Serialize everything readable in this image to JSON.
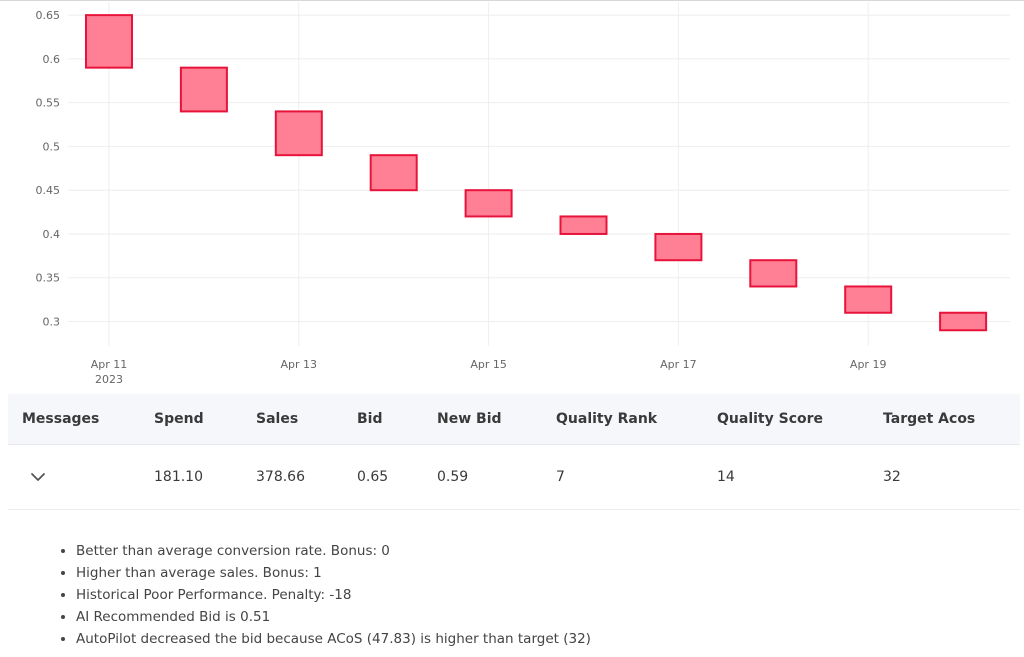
{
  "chart_data": {
    "type": "candlestick",
    "x": [
      "Apr 11 2023",
      "Apr 12 2023",
      "Apr 13 2023",
      "Apr 14 2023",
      "Apr 15 2023",
      "Apr 16 2023",
      "Apr 17 2023",
      "Apr 18 2023",
      "Apr 19 2023",
      "Apr 20 2023"
    ],
    "open": [
      0.65,
      0.59,
      0.54,
      0.49,
      0.45,
      0.42,
      0.4,
      0.37,
      0.34,
      0.31
    ],
    "close": [
      0.59,
      0.54,
      0.49,
      0.45,
      0.42,
      0.4,
      0.37,
      0.34,
      0.31,
      0.29
    ],
    "ylim": [
      0.272,
      0.665
    ],
    "y_ticks": [
      "0.3",
      "0.35",
      "0.4",
      "0.45",
      "0.5",
      "0.55",
      "0.6",
      "0.65"
    ],
    "x_ticks": [
      {
        "label": "Apr 11",
        "sub": "2023"
      },
      {
        "label": "Apr 13",
        "sub": ""
      },
      {
        "label": "Apr 15",
        "sub": ""
      },
      {
        "label": "Apr 17",
        "sub": ""
      },
      {
        "label": "Apr 19",
        "sub": ""
      }
    ],
    "grid": true,
    "colors": {
      "fill": "#ff8095",
      "stroke": "#e8133b",
      "grid": "#eeeeee"
    }
  },
  "table": {
    "headers": {
      "messages": "Messages",
      "spend": "Spend",
      "sales": "Sales",
      "bid": "Bid",
      "new_bid": "New Bid",
      "quality_rank": "Quality Rank",
      "quality_score": "Quality Score",
      "target_acos": "Target Acos"
    },
    "row": {
      "expand_icon": "chevron-down-icon",
      "spend": "181.10",
      "sales": "378.66",
      "bid": "0.65",
      "new_bid": "0.59",
      "quality_rank": "7",
      "quality_score": "14",
      "target_acos": "32"
    }
  },
  "messages": [
    "Better than average conversion rate. Bonus: 0",
    "Higher than average sales. Bonus: 1",
    "Historical Poor Performance. Penalty: -18",
    "AI Recommended Bid is 0.51",
    "AutoPilot decreased the bid because ACoS (47.83) is higher than target (32)"
  ]
}
